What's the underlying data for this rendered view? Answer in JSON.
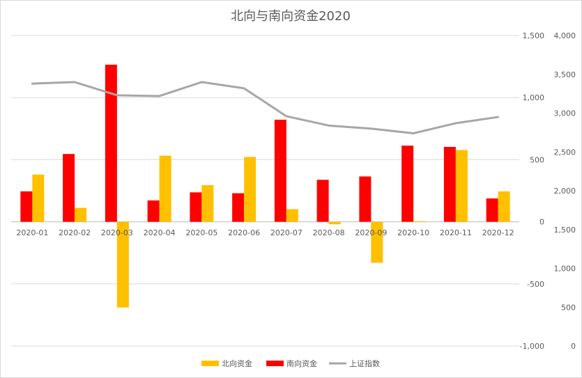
{
  "chart_data": {
    "type": "bar",
    "title": "北向与南向资金2020",
    "categories": [
      "2020-01",
      "2020-02",
      "2020-03",
      "2020-04",
      "2020-05",
      "2020-06",
      "2020-07",
      "2020-08",
      "2020-09",
      "2020-10",
      "2020-11",
      "2020-12"
    ],
    "series": [
      {
        "name": "北向资金",
        "type": "bar",
        "axis": "left",
        "color": "#FFC000",
        "values": [
          380,
          112,
          -690,
          532,
          295,
          522,
          102,
          -20,
          -330,
          5,
          578,
          245
        ]
      },
      {
        "name": "南向资金",
        "type": "bar",
        "axis": "left",
        "color": "#FF0000",
        "values": [
          245,
          546,
          1265,
          172,
          237,
          230,
          822,
          338,
          365,
          613,
          603,
          188
        ]
      },
      {
        "name": "上证指数",
        "type": "line",
        "axis": "right",
        "color": "#A6A6A6",
        "values": [
          3380,
          3400,
          3230,
          3220,
          3400,
          3320,
          2960,
          2840,
          2800,
          2740,
          2870,
          2950
        ]
      }
    ],
    "left_axis": {
      "min": -1000,
      "max": 1500,
      "ticks": [
        "-1,000",
        "-500",
        "0",
        "500",
        "1,000",
        "1,500"
      ]
    },
    "right_axis": {
      "min": 0,
      "max": 4000,
      "ticks": [
        "0",
        "500",
        "1,000",
        "1,500",
        "2,000",
        "2,500",
        "3,000",
        "3,500",
        "4,000"
      ]
    },
    "grid": true,
    "legend": "bottom"
  }
}
